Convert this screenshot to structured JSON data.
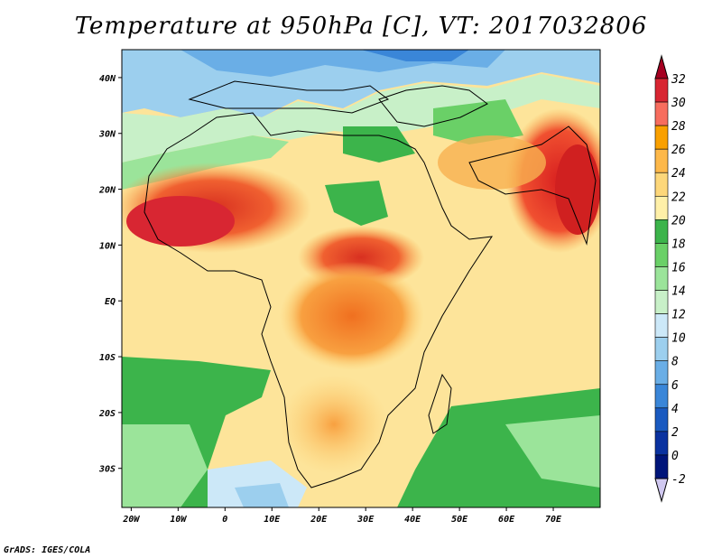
{
  "title": "Temperature at 950hPa [C], VT: 2017032806",
  "footer": "GrADS: IGES/COLA",
  "map": {
    "lon_ticks": [
      "20W",
      "10W",
      "0",
      "10E",
      "20E",
      "30E",
      "40E",
      "50E",
      "60E",
      "70E"
    ],
    "lon_values": [
      -20,
      -10,
      0,
      10,
      20,
      30,
      40,
      50,
      60,
      70
    ],
    "lat_ticks": [
      "40N",
      "30N",
      "20N",
      "10N",
      "EQ",
      "10S",
      "20S",
      "30S"
    ],
    "lat_values": [
      40,
      30,
      20,
      10,
      0,
      -10,
      -20,
      -30
    ],
    "lon_range": [
      -22,
      80
    ],
    "lat_range": [
      -37,
      45
    ]
  },
  "colorbar": {
    "levels": [
      "32",
      "30",
      "28",
      "26",
      "24",
      "22",
      "20",
      "18",
      "16",
      "14",
      "12",
      "10",
      "8",
      "6",
      "4",
      "2",
      "0",
      "-2"
    ],
    "colors": [
      "#a50021",
      "#d82632",
      "#f76d5e",
      "#f9a000",
      "#fdb84a",
      "#fdd77a",
      "#fff0a8",
      "#3cb44b",
      "#6ad067",
      "#9be49a",
      "#c8f0c8",
      "#cce8f8",
      "#9ccfee",
      "#6aaee6",
      "#3a86d8",
      "#1a5ac0",
      "#0a32a0",
      "#00157a",
      "#d0c8f0"
    ]
  }
}
